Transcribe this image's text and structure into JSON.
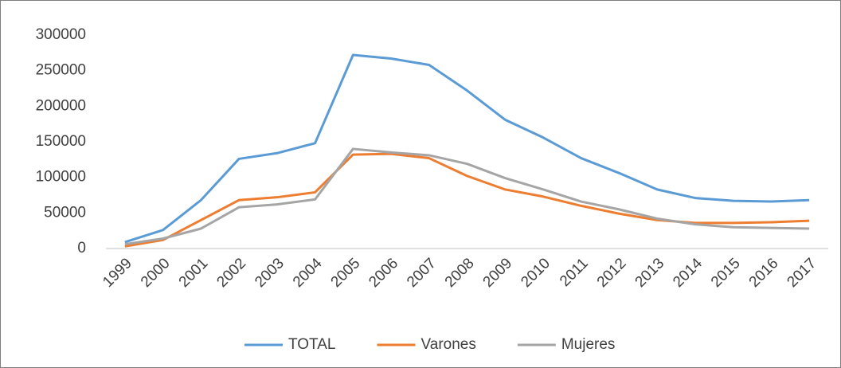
{
  "chart_data": {
    "type": "line",
    "categories": [
      "1999",
      "2000",
      "2001",
      "2002",
      "2003",
      "2004",
      "2005",
      "2006",
      "2007",
      "2008",
      "2009",
      "2010",
      "2011",
      "2012",
      "2013",
      "2014",
      "2015",
      "2016",
      "2017"
    ],
    "series": [
      {
        "name": "TOTAL",
        "color": "#5b9bd5",
        "values": [
          9000,
          26000,
          68000,
          126000,
          134000,
          148000,
          272000,
          267000,
          258000,
          222000,
          181000,
          156000,
          127000,
          106000,
          83000,
          71000,
          67000,
          66000,
          68000
        ]
      },
      {
        "name": "Varones",
        "color": "#ed7d31",
        "values": [
          3000,
          12000,
          40000,
          68000,
          72000,
          79000,
          132000,
          133000,
          127000,
          102000,
          83000,
          73000,
          60000,
          49000,
          40000,
          36000,
          36000,
          37000,
          39000
        ]
      },
      {
        "name": "Mujeres",
        "color": "#a5a5a5",
        "values": [
          6000,
          14000,
          28000,
          58000,
          62000,
          69000,
          140000,
          135000,
          131000,
          119000,
          99000,
          83000,
          66000,
          55000,
          42000,
          34000,
          30000,
          29000,
          28000
        ]
      }
    ],
    "ylim": [
      0,
      300000
    ],
    "yticks": [
      0,
      50000,
      100000,
      150000,
      200000,
      250000,
      300000
    ],
    "grid": false,
    "legend": "bottom"
  }
}
